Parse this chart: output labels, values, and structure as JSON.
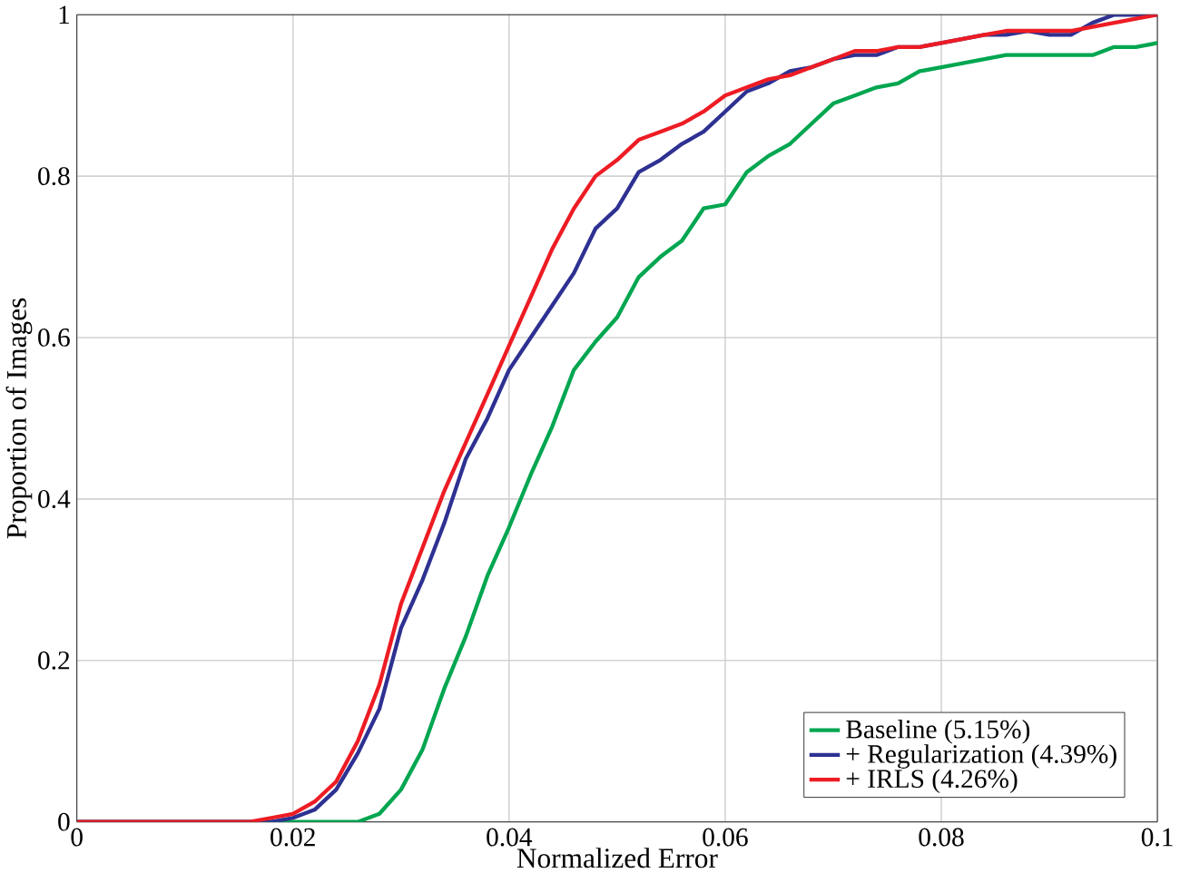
{
  "chart_data": {
    "type": "line",
    "xlabel": "Normalized Error",
    "ylabel": "Proportion of Images",
    "x": [
      0,
      0.016,
      0.018,
      0.02,
      0.022,
      0.024,
      0.026,
      0.028,
      0.03,
      0.032,
      0.034,
      0.036,
      0.038,
      0.04,
      0.042,
      0.044,
      0.046,
      0.048,
      0.05,
      0.052,
      0.054,
      0.056,
      0.058,
      0.06,
      0.062,
      0.064,
      0.066,
      0.068,
      0.07,
      0.072,
      0.074,
      0.076,
      0.078,
      0.08,
      0.082,
      0.084,
      0.086,
      0.088,
      0.09,
      0.092,
      0.094,
      0.096,
      0.098,
      0.1
    ],
    "series": [
      {
        "name": "Baseline (5.15%)",
        "color": "#00a650",
        "values": [
          0,
          0,
          0,
          0,
          0,
          0,
          0,
          0.01,
          0.04,
          0.09,
          0.165,
          0.23,
          0.305,
          0.365,
          0.43,
          0.49,
          0.56,
          0.595,
          0.625,
          0.675,
          0.7,
          0.72,
          0.76,
          0.765,
          0.805,
          0.825,
          0.84,
          0.865,
          0.89,
          0.9,
          0.91,
          0.915,
          0.93,
          0.935,
          0.94,
          0.945,
          0.95,
          0.95,
          0.95,
          0.95,
          0.95,
          0.96,
          0.96,
          0.965
        ]
      },
      {
        "name": "+ Regularization (4.39%)",
        "color": "#2e3192",
        "values": [
          0,
          0,
          0,
          0.005,
          0.015,
          0.04,
          0.085,
          0.14,
          0.24,
          0.3,
          0.37,
          0.45,
          0.5,
          0.56,
          0.6,
          0.64,
          0.68,
          0.735,
          0.76,
          0.805,
          0.82,
          0.84,
          0.855,
          0.88,
          0.905,
          0.915,
          0.93,
          0.935,
          0.945,
          0.95,
          0.95,
          0.96,
          0.96,
          0.965,
          0.97,
          0.975,
          0.975,
          0.98,
          0.975,
          0.975,
          0.99,
          1.0,
          1.0,
          1.0
        ]
      },
      {
        "name": "+ IRLS (4.26%)",
        "color": "#ed1c24",
        "values": [
          0,
          0,
          0.005,
          0.01,
          0.025,
          0.05,
          0.1,
          0.17,
          0.27,
          0.34,
          0.41,
          0.47,
          0.53,
          0.59,
          0.65,
          0.71,
          0.76,
          0.8,
          0.82,
          0.845,
          0.855,
          0.865,
          0.88,
          0.9,
          0.91,
          0.92,
          0.925,
          0.935,
          0.945,
          0.955,
          0.955,
          0.96,
          0.96,
          0.965,
          0.97,
          0.975,
          0.98,
          0.98,
          0.98,
          0.98,
          0.985,
          0.99,
          0.995,
          1.0
        ]
      }
    ],
    "xlim": [
      0,
      0.1
    ],
    "ylim": [
      0,
      1
    ],
    "xticks": [
      0,
      0.02,
      0.04,
      0.06,
      0.08,
      0.1
    ],
    "yticks": [
      0,
      0.2,
      0.4,
      0.6,
      0.8,
      1
    ],
    "grid": true,
    "legend": "bottom right",
    "marker": "none",
    "line_style": "solid"
  }
}
